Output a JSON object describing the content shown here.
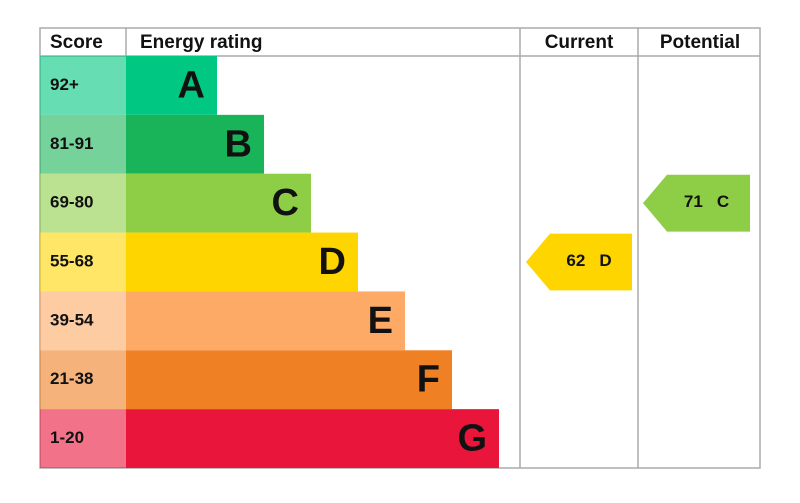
{
  "header": {
    "score": "Score",
    "rating": "Energy rating",
    "current": "Current",
    "potential": "Potential"
  },
  "bands": [
    {
      "score": "92+",
      "letter": "A",
      "color": "#00c781"
    },
    {
      "score": "81-91",
      "letter": "B",
      "color": "#19b459"
    },
    {
      "score": "69-80",
      "letter": "C",
      "color": "#8dce46"
    },
    {
      "score": "55-68",
      "letter": "D",
      "color": "#ffd500"
    },
    {
      "score": "39-54",
      "letter": "E",
      "color": "#fcaa65"
    },
    {
      "score": "21-38",
      "letter": "F",
      "color": "#ef8023"
    },
    {
      "score": "1-20",
      "letter": "G",
      "color": "#e9153b"
    }
  ],
  "current": {
    "value": 62,
    "letter": "D"
  },
  "potential": {
    "value": 71,
    "letter": "C"
  }
}
